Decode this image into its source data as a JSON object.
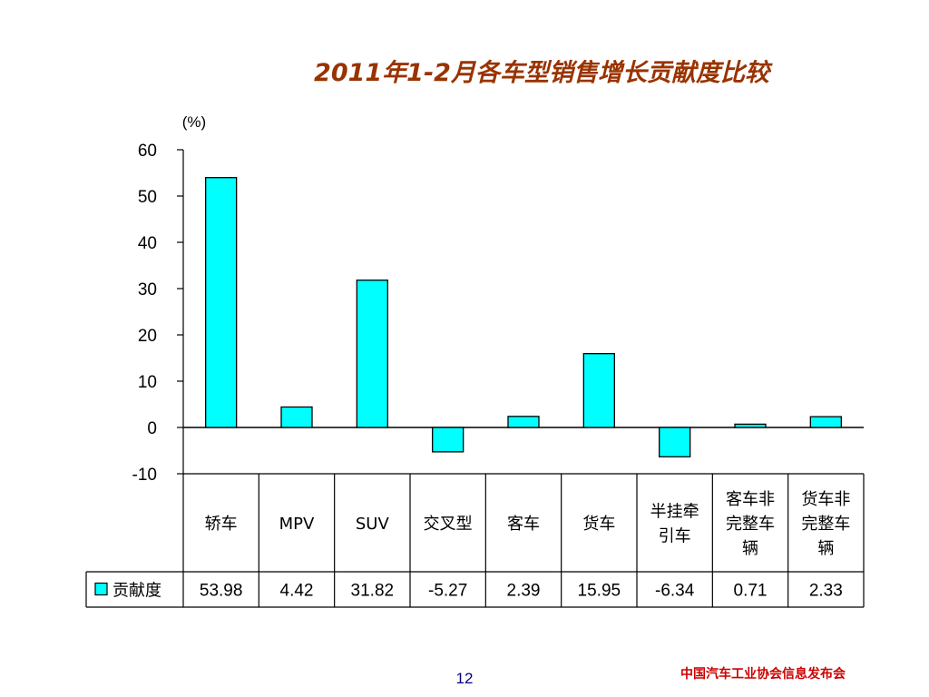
{
  "slide": {
    "title": "2011年1-2月各车型销售增长贡献度比较",
    "page_number": "12",
    "footer": "中国汽车工业协会信息发布会"
  },
  "colors": {
    "title": "#993300",
    "bar_fill": "#00ffff",
    "bar_stroke": "#000000",
    "footer": "#cc0000",
    "page_number": "#000080"
  },
  "chart_data": {
    "type": "bar",
    "title": "2011年1-2月各车型销售增长贡献度比较",
    "ylabel": "(%)",
    "xlabel": "",
    "ylim": [
      -10,
      60
    ],
    "yticks": [
      "60",
      "50",
      "40",
      "30",
      "20",
      "10",
      "0",
      "-10"
    ],
    "ytick_values": [
      60,
      50,
      40,
      30,
      20,
      10,
      0,
      -10
    ],
    "grid": false,
    "legend": "in data table",
    "categories": [
      [
        "轿车"
      ],
      [
        "MPV"
      ],
      [
        "SUV"
      ],
      [
        "交叉型"
      ],
      [
        "客车"
      ],
      [
        "货车"
      ],
      [
        "半挂牵",
        "引车"
      ],
      [
        "客车非",
        "完整车",
        "辆"
      ],
      [
        "货车非",
        "完整车",
        "辆"
      ]
    ],
    "series": [
      {
        "name": "贡献度",
        "values": [
          53.98,
          4.42,
          31.82,
          -5.27,
          2.39,
          15.95,
          -6.34,
          0.71,
          2.33
        ],
        "labels": [
          "53.98",
          "4.42",
          "31.82",
          "-5.27",
          "2.39",
          "15.95",
          "-6.34",
          "0.71",
          "2.33"
        ]
      }
    ]
  }
}
